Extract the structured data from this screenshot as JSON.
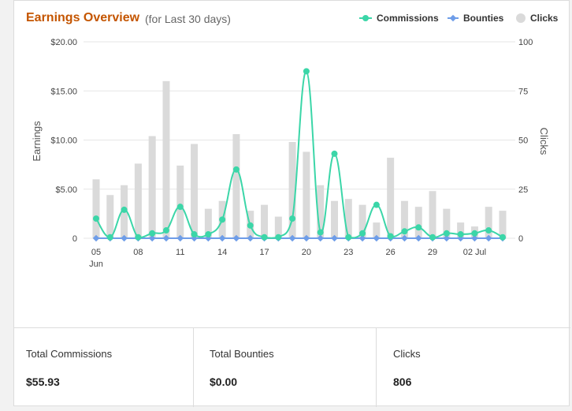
{
  "header": {
    "title": "Earnings Overview",
    "subtitle": "(for Last 30 days)"
  },
  "legend": {
    "commissions": "Commissions",
    "bounties": "Bounties",
    "clicks": "Clicks"
  },
  "colors": {
    "title": "#c45500",
    "commissions": "#3bd6a8",
    "bounties": "#6e9de8",
    "clicks": "#dadada"
  },
  "chart_data": {
    "type": "bar",
    "x_tick_labels": [
      "05",
      "08",
      "11",
      "14",
      "17",
      "20",
      "23",
      "26",
      "29",
      "02 Jul"
    ],
    "x_month_label": "Jun",
    "left_axis": {
      "title": "Earnings",
      "ticks": [
        "$20.00",
        "$15.00",
        "$10.00",
        "$5.00",
        "0"
      ],
      "range": [
        0,
        20
      ]
    },
    "right_axis": {
      "title": "Clicks",
      "ticks": [
        "100",
        "75",
        "50",
        "25",
        "0"
      ],
      "range": [
        0,
        100
      ]
    },
    "dates": [
      "06-05",
      "06-06",
      "06-07",
      "06-08",
      "06-09",
      "06-10",
      "06-11",
      "06-12",
      "06-13",
      "06-14",
      "06-15",
      "06-16",
      "06-17",
      "06-18",
      "06-19",
      "06-20",
      "06-21",
      "06-22",
      "06-23",
      "06-24",
      "06-25",
      "06-26",
      "06-27",
      "06-28",
      "06-29",
      "06-30",
      "07-01",
      "07-02",
      "07-03",
      "07-04"
    ],
    "series": [
      {
        "name": "Clicks",
        "type": "bar",
        "axis": "right",
        "values": [
          30,
          22,
          27,
          38,
          52,
          80,
          37,
          48,
          15,
          19,
          53,
          14,
          17,
          11,
          49,
          44,
          27,
          19,
          20,
          17,
          8,
          41,
          19,
          16,
          24,
          15,
          8,
          6,
          16,
          14
        ]
      },
      {
        "name": "Commissions",
        "type": "line",
        "axis": "left",
        "values": [
          2.0,
          0.1,
          2.9,
          0.1,
          0.5,
          0.8,
          3.2,
          0.4,
          0.4,
          1.9,
          7.0,
          1.3,
          0.1,
          0.1,
          2.0,
          17.0,
          0.6,
          8.6,
          0.1,
          0.5,
          3.4,
          0.2,
          0.7,
          1.1,
          0.1,
          0.5,
          0.4,
          0.5,
          0.8,
          0.1
        ]
      },
      {
        "name": "Bounties",
        "type": "line",
        "axis": "left",
        "values": [
          0,
          0,
          0,
          0,
          0,
          0,
          0,
          0,
          0,
          0,
          0,
          0,
          0,
          0,
          0,
          0,
          0,
          0,
          0,
          0,
          0,
          0,
          0,
          0,
          0,
          0,
          0,
          0,
          0,
          0
        ]
      }
    ]
  },
  "stats": [
    {
      "label": "Total Commissions",
      "value": "$55.93"
    },
    {
      "label": "Total Bounties",
      "value": "$0.00"
    },
    {
      "label": "Clicks",
      "value": "806"
    }
  ]
}
